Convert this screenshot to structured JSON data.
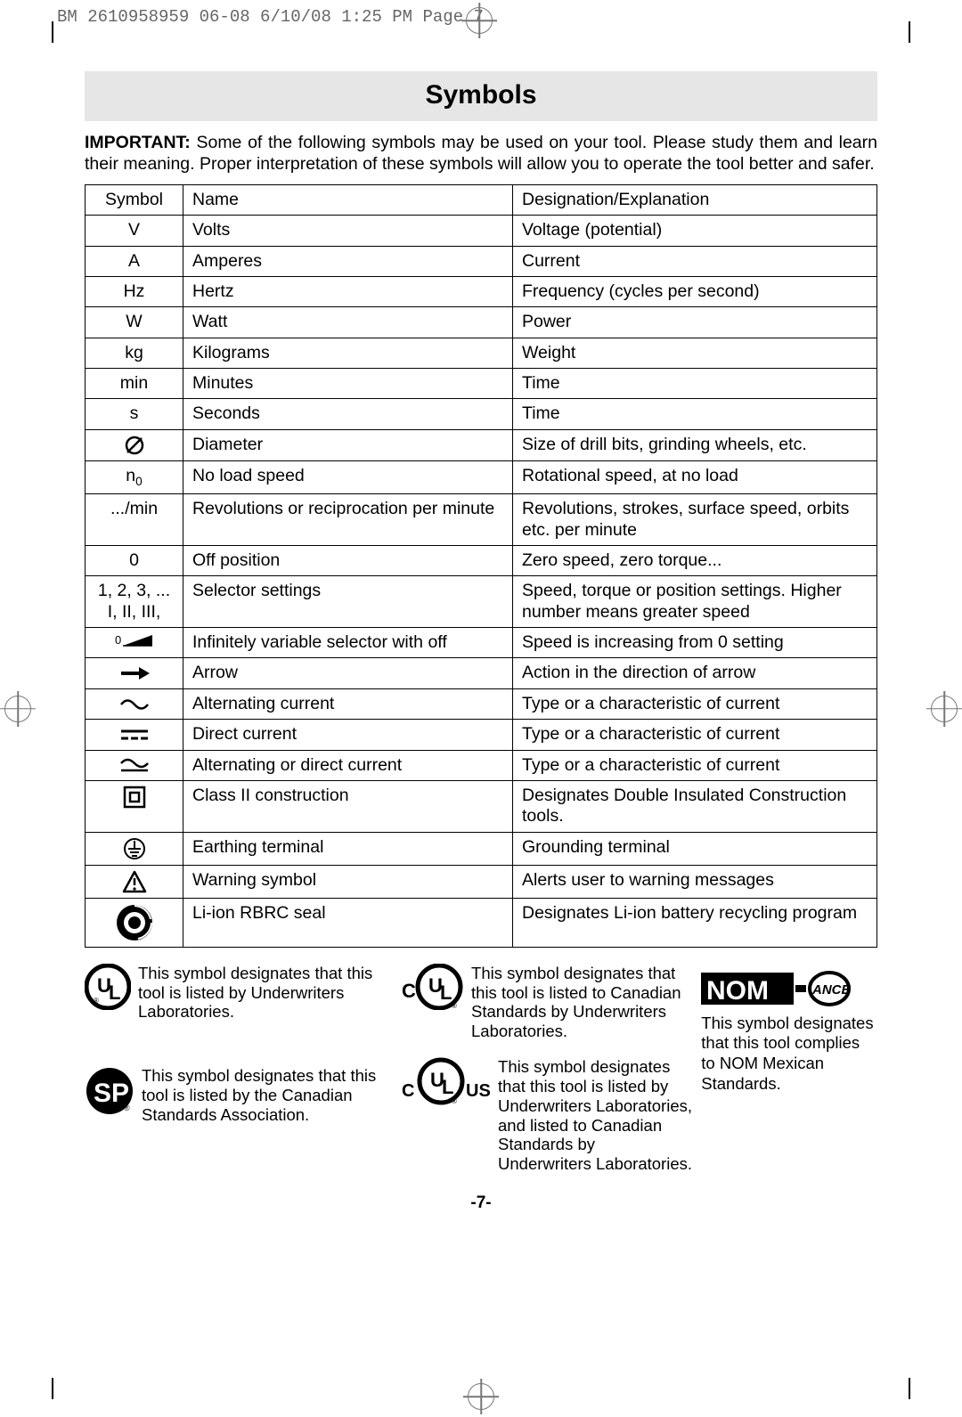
{
  "crop_header": "BM 2610958959 06-08  6/10/08  1:25 PM  Page 7",
  "title": "Symbols",
  "intro_bold": "IMPORTANT:",
  "intro_rest": " Some of the following symbols may be used on your tool.  Please study them and learn their meaning.  Proper interpretation of these symbols will allow you to operate the tool better and safer.",
  "headers": {
    "c1": "Symbol",
    "c2": "Name",
    "c3": "Designation/Explanation"
  },
  "rows": [
    {
      "sym_text": "V",
      "name": "Volts",
      "desc": "Voltage (potential)"
    },
    {
      "sym_text": "A",
      "name": "Amperes",
      "desc": "Current"
    },
    {
      "sym_text": "Hz",
      "name": "Hertz",
      "desc": "Frequency (cycles per second)"
    },
    {
      "sym_text": "W",
      "name": "Watt",
      "desc": "Power"
    },
    {
      "sym_text": "kg",
      "name": "Kilograms",
      "desc": "Weight"
    },
    {
      "sym_text": "min",
      "name": "Minutes",
      "desc": "Time"
    },
    {
      "sym_text": "s",
      "name": "Seconds",
      "desc": "Time"
    },
    {
      "sym_svg": "diameter",
      "name": "Diameter",
      "desc": "Size of drill bits, grinding wheels,  etc."
    },
    {
      "sym_html": "n<sub>0</sub>",
      "name": "No load speed",
      "desc": "Rotational speed, at no load"
    },
    {
      "sym_text": ".../min",
      "name": "Revolutions or reciprocation per minute",
      "desc": "Revolutions, strokes, surface speed, orbits etc. per minute"
    },
    {
      "sym_text": "0",
      "name": "Off position",
      "desc": "Zero speed, zero torque..."
    },
    {
      "sym_html": "1, 2, 3, ...<br>I, II, III,",
      "name": "Selector settings",
      "desc": "Speed, torque or position settings. Higher number means greater speed"
    },
    {
      "sym_svg": "ramp",
      "name": "Infinitely variable selector with off",
      "desc": "Speed is increasing from 0 setting"
    },
    {
      "sym_svg": "arrow",
      "name": "Arrow",
      "desc": "Action in the direction of arrow"
    },
    {
      "sym_svg": "ac",
      "name": "Alternating current",
      "desc": "Type or a characteristic of current"
    },
    {
      "sym_svg": "dc",
      "name": "Direct current",
      "desc": "Type or a characteristic of current"
    },
    {
      "sym_svg": "acdc",
      "name": "Alternating or direct current",
      "desc": "Type or a characteristic of current"
    },
    {
      "sym_svg": "class2",
      "name": "Class II  construction",
      "desc": "Designates Double Insulated Construction tools."
    },
    {
      "sym_svg": "earth",
      "name": "Earthing terminal",
      "desc": "Grounding terminal"
    },
    {
      "sym_svg": "warn",
      "name": "Warning symbol",
      "desc": "Alerts user to warning messages"
    },
    {
      "sym_svg": "rbrc",
      "name": "Li-ion RBRC seal",
      "desc": "Designates Li-ion battery recycling program"
    }
  ],
  "cert": {
    "ul": "This symbol designates that this tool is listed by Underwriters Laboratories.",
    "csa": "This symbol designates that this tool is listed by the Canadian Standards Association.",
    "cul": "This symbol designates that this tool is listed to Canadian Standards by Underwriters Laboratories.",
    "culus": "This symbol designates that this tool is listed by Underwriters Laboratories, and listed to Canadian Standards by Underwriters Laboratories.",
    "nom": "This symbol designates that this tool complies to NOM Mexican Standards."
  },
  "page_number": "-7-"
}
